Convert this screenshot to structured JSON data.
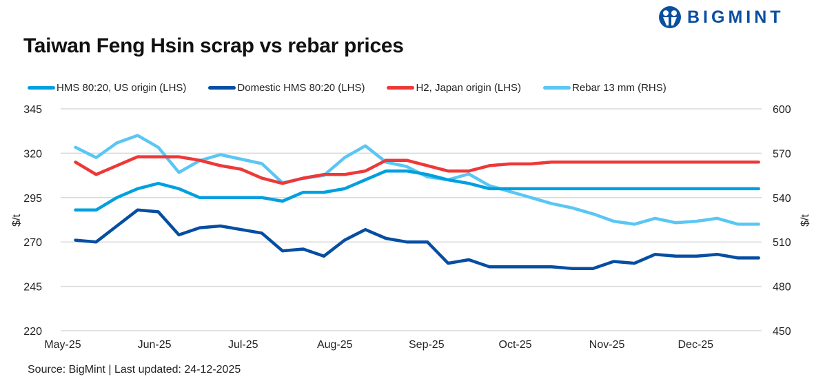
{
  "logo": {
    "text": "BIGMINT",
    "color": "#0a4fa0"
  },
  "source": "Source: BigMint |  Last updated: 24-12-2025",
  "chart_data": {
    "type": "line",
    "title": "Taiwan Feng Hsin scrap vs rebar prices",
    "ylabel": "$/t",
    "y2label": "$/t",
    "ylim": [
      220,
      345
    ],
    "y2lim": [
      450,
      600
    ],
    "yticks": [
      "220",
      "245",
      "270",
      "295",
      "320",
      "345"
    ],
    "y2ticks": [
      "450",
      "480",
      "510",
      "540",
      "570",
      "600"
    ],
    "xlim": [
      "2025-05-01",
      "2025-12-24"
    ],
    "xticks": [
      {
        "date": "2025-05-01",
        "label": "May-25"
      },
      {
        "date": "2025-06-01",
        "label": "Jun-25"
      },
      {
        "date": "2025-07-01",
        "label": "Jul-25"
      },
      {
        "date": "2025-08-01",
        "label": "Aug-25"
      },
      {
        "date": "2025-09-01",
        "label": "Sep-25"
      },
      {
        "date": "2025-10-01",
        "label": "Oct-25"
      },
      {
        "date": "2025-11-01",
        "label": "Nov-25"
      },
      {
        "date": "2025-12-01",
        "label": "Dec-25"
      }
    ],
    "grid": true,
    "legend_position": "top",
    "x": [
      "2025-05-06",
      "2025-05-13",
      "2025-05-20",
      "2025-05-27",
      "2025-06-03",
      "2025-06-10",
      "2025-06-17",
      "2025-06-24",
      "2025-07-01",
      "2025-07-08",
      "2025-07-15",
      "2025-07-22",
      "2025-07-29",
      "2025-08-05",
      "2025-08-12",
      "2025-08-19",
      "2025-08-26",
      "2025-09-02",
      "2025-09-09",
      "2025-09-16",
      "2025-09-23",
      "2025-09-30",
      "2025-10-07",
      "2025-10-14",
      "2025-10-21",
      "2025-10-28",
      "2025-11-04",
      "2025-11-11",
      "2025-11-18",
      "2025-11-25",
      "2025-12-02",
      "2025-12-09",
      "2025-12-16",
      "2025-12-23"
    ],
    "series": [
      {
        "name": "HMS 80:20, US origin (LHS)",
        "axis": "left",
        "color": "#00a0df",
        "values": [
          288,
          288,
          295,
          300,
          303,
          300,
          295,
          295,
          295,
          295,
          293,
          298,
          298,
          300,
          305,
          310,
          310,
          308,
          305,
          303,
          300,
          300,
          300,
          300,
          300,
          300,
          300,
          300,
          300,
          300,
          300,
          300,
          300,
          300
        ]
      },
      {
        "name": "Domestic HMS 80:20 (LHS)",
        "axis": "left",
        "color": "#054ea1",
        "values": [
          271,
          270,
          279,
          288,
          287,
          274,
          278,
          279,
          277,
          275,
          265,
          266,
          262,
          271,
          277,
          272,
          270,
          270,
          258,
          260,
          256,
          256,
          256,
          256,
          255,
          255,
          259,
          258,
          263,
          262,
          262,
          263,
          261,
          261
        ]
      },
      {
        "name": "H2, Japan origin (LHS)",
        "axis": "left",
        "color": "#ee3838",
        "values": [
          315,
          308,
          313,
          318,
          318,
          318,
          316,
          313,
          311,
          306,
          303,
          306,
          308,
          308,
          310,
          316,
          316,
          313,
          310,
          310,
          313,
          314,
          314,
          315,
          315,
          315,
          315,
          315,
          315,
          315,
          315,
          315,
          315,
          315
        ]
      },
      {
        "name": "Rebar 13 mm (RHS)",
        "axis": "right",
        "color": "#5ac6f3",
        "values": [
          574,
          567,
          577,
          582,
          574,
          557,
          565,
          569,
          566,
          563,
          550,
          553,
          555,
          567,
          575,
          564,
          561,
          554,
          552,
          556,
          548,
          544,
          540,
          536,
          533,
          529,
          524,
          522,
          526,
          523,
          524,
          526,
          522,
          522
        ]
      }
    ]
  }
}
